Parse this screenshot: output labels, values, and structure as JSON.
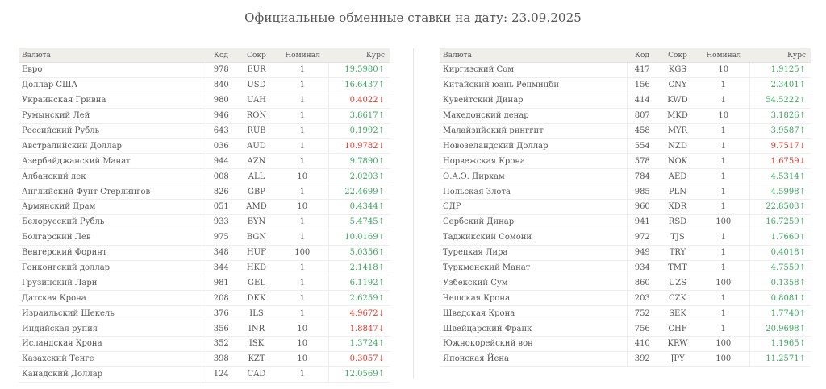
{
  "title": "Официальные обменные ставки на дату: 23.09.2025",
  "colors": {
    "up": "#3aa85e",
    "down": "#e0392a",
    "header_bg": "#f0eeea"
  },
  "headers": {
    "name": "Валюта",
    "code": "Код",
    "abbr": "Сокр",
    "nominal": "Номинал",
    "rate": "Курс"
  },
  "left_rows": [
    {
      "name": "Евро",
      "code": "978",
      "abbr": "EUR",
      "nominal": "1",
      "rate": "19.5980↑",
      "dir": "up"
    },
    {
      "name": "Доллар США",
      "code": "840",
      "abbr": "USD",
      "nominal": "1",
      "rate": "16.6437↑",
      "dir": "up"
    },
    {
      "name": "Украинская Гривна",
      "code": "980",
      "abbr": "UAH",
      "nominal": "1",
      "rate": "0.4022↓",
      "dir": "down"
    },
    {
      "name": "Румынский Лей",
      "code": "946",
      "abbr": "RON",
      "nominal": "1",
      "rate": "3.8617↑",
      "dir": "up"
    },
    {
      "name": "Российский Рубль",
      "code": "643",
      "abbr": "RUB",
      "nominal": "1",
      "rate": "0.1992↑",
      "dir": "up"
    },
    {
      "name": "Австралийский Доллар",
      "code": "036",
      "abbr": "AUD",
      "nominal": "1",
      "rate": "10.9782↓",
      "dir": "down"
    },
    {
      "name": "Азербайджанский Манат",
      "code": "944",
      "abbr": "AZN",
      "nominal": "1",
      "rate": "9.7890↑",
      "dir": "up"
    },
    {
      "name": "Албанский лек",
      "code": "008",
      "abbr": "ALL",
      "nominal": "10",
      "rate": "2.0203↑",
      "dir": "up"
    },
    {
      "name": "Английский Фунт Стерлингов",
      "code": "826",
      "abbr": "GBP",
      "nominal": "1",
      "rate": "22.4699↑",
      "dir": "up"
    },
    {
      "name": "Армянский Драм",
      "code": "051",
      "abbr": "AMD",
      "nominal": "10",
      "rate": "0.4344↑",
      "dir": "up"
    },
    {
      "name": "Белорусский Рубль",
      "code": "933",
      "abbr": "BYN",
      "nominal": "1",
      "rate": "5.4745↑",
      "dir": "up"
    },
    {
      "name": "Болгарский Лев",
      "code": "975",
      "abbr": "BGN",
      "nominal": "1",
      "rate": "10.0169↑",
      "dir": "up"
    },
    {
      "name": "Венгерский Форинт",
      "code": "348",
      "abbr": "HUF",
      "nominal": "100",
      "rate": "5.0356↑",
      "dir": "up"
    },
    {
      "name": "Гонконгский доллар",
      "code": "344",
      "abbr": "HKD",
      "nominal": "1",
      "rate": "2.1418↑",
      "dir": "up"
    },
    {
      "name": "Грузинский Лари",
      "code": "981",
      "abbr": "GEL",
      "nominal": "1",
      "rate": "6.1192↑",
      "dir": "up"
    },
    {
      "name": "Датская Крона",
      "code": "208",
      "abbr": "DKK",
      "nominal": "1",
      "rate": "2.6259↑",
      "dir": "up"
    },
    {
      "name": "Израильский Шекель",
      "code": "376",
      "abbr": "ILS",
      "nominal": "1",
      "rate": "4.9672↓",
      "dir": "down"
    },
    {
      "name": "Индийская рупия",
      "code": "356",
      "abbr": "INR",
      "nominal": "10",
      "rate": "1.8847↓",
      "dir": "down"
    },
    {
      "name": "Исландская Крона",
      "code": "352",
      "abbr": "ISK",
      "nominal": "10",
      "rate": "1.3724↑",
      "dir": "up"
    },
    {
      "name": "Казахский Тенге",
      "code": "398",
      "abbr": "KZT",
      "nominal": "10",
      "rate": "0.3057↓",
      "dir": "down"
    },
    {
      "name": "Канадский Доллар",
      "code": "124",
      "abbr": "CAD",
      "nominal": "1",
      "rate": "12.0569↑",
      "dir": "up"
    }
  ],
  "right_rows": [
    {
      "name": "Киргизский Сом",
      "code": "417",
      "abbr": "KGS",
      "nominal": "10",
      "rate": "1.9125↑",
      "dir": "up"
    },
    {
      "name": "Китайский юань Ренминби",
      "code": "156",
      "abbr": "CNY",
      "nominal": "1",
      "rate": "2.3401↑",
      "dir": "up"
    },
    {
      "name": "Кувейтский Динар",
      "code": "414",
      "abbr": "KWD",
      "nominal": "1",
      "rate": "54.5222↑",
      "dir": "up"
    },
    {
      "name": "Македонский денар",
      "code": "807",
      "abbr": "MKD",
      "nominal": "10",
      "rate": "3.1826↑",
      "dir": "up"
    },
    {
      "name": "Малайзийский ринггит",
      "code": "458",
      "abbr": "MYR",
      "nominal": "1",
      "rate": "3.9587↑",
      "dir": "up"
    },
    {
      "name": "Новозеландский Доллар",
      "code": "554",
      "abbr": "NZD",
      "nominal": "1",
      "rate": "9.7517↓",
      "dir": "down"
    },
    {
      "name": "Норвежская Крона",
      "code": "578",
      "abbr": "NOK",
      "nominal": "1",
      "rate": "1.6759↓",
      "dir": "down"
    },
    {
      "name": "О.А.Э. Дирхам",
      "code": "784",
      "abbr": "AED",
      "nominal": "1",
      "rate": "4.5314↑",
      "dir": "up"
    },
    {
      "name": "Польская Злота",
      "code": "985",
      "abbr": "PLN",
      "nominal": "1",
      "rate": "4.5998↑",
      "dir": "up"
    },
    {
      "name": "СДР",
      "code": "960",
      "abbr": "XDR",
      "nominal": "1",
      "rate": "22.8503↑",
      "dir": "up"
    },
    {
      "name": "Сербский Динар",
      "code": "941",
      "abbr": "RSD",
      "nominal": "100",
      "rate": "16.7259↑",
      "dir": "up"
    },
    {
      "name": "Таджикский Сомони",
      "code": "972",
      "abbr": "TJS",
      "nominal": "1",
      "rate": "1.7660↑",
      "dir": "up"
    },
    {
      "name": "Турецкая Лира",
      "code": "949",
      "abbr": "TRY",
      "nominal": "1",
      "rate": "0.4018↑",
      "dir": "up"
    },
    {
      "name": "Туркменский Манат",
      "code": "934",
      "abbr": "TMT",
      "nominal": "1",
      "rate": "4.7559↑",
      "dir": "up"
    },
    {
      "name": "Узбекский Сум",
      "code": "860",
      "abbr": "UZS",
      "nominal": "100",
      "rate": "0.1358↑",
      "dir": "up"
    },
    {
      "name": "Чешская Крона",
      "code": "203",
      "abbr": "CZK",
      "nominal": "1",
      "rate": "0.8081↑",
      "dir": "up"
    },
    {
      "name": "Шведская Крона",
      "code": "752",
      "abbr": "SEK",
      "nominal": "1",
      "rate": "1.7740↑",
      "dir": "up"
    },
    {
      "name": "Швейцарский Франк",
      "code": "756",
      "abbr": "CHF",
      "nominal": "1",
      "rate": "20.9698↑",
      "dir": "up"
    },
    {
      "name": "Южнокорейский вон",
      "code": "410",
      "abbr": "KRW",
      "nominal": "100",
      "rate": "1.1965↑",
      "dir": "up"
    },
    {
      "name": "Японская Йена",
      "code": "392",
      "abbr": "JPY",
      "nominal": "100",
      "rate": "11.2571↑",
      "dir": "up"
    }
  ]
}
